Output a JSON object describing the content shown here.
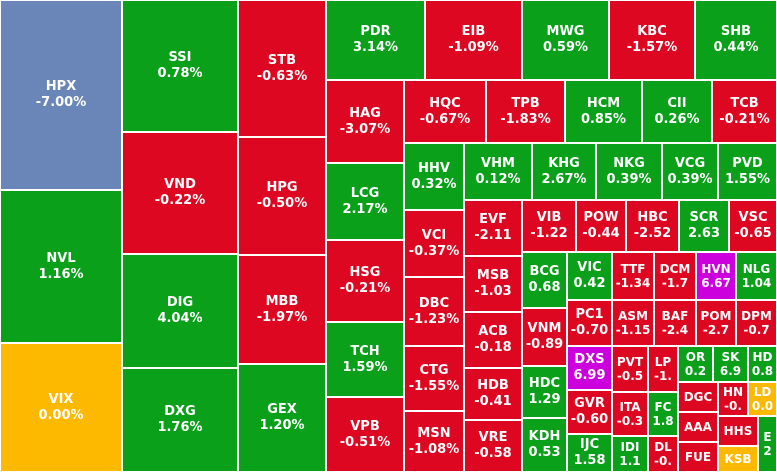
{
  "colors": {
    "up": "#0AA01A",
    "down": "#DD0722",
    "ref": "#FDB800",
    "floor": "#6A86B8",
    "ceiling": "#CC00DD"
  },
  "tiles": [
    {
      "ticker": "HPX",
      "change": "-7.00%",
      "status": "floor"
    },
    {
      "ticker": "NVL",
      "change": "1.16%",
      "status": "up"
    },
    {
      "ticker": "VIX",
      "change": "0.00%",
      "status": "ref"
    },
    {
      "ticker": "SSI",
      "change": "0.78%",
      "status": "up"
    },
    {
      "ticker": "VND",
      "change": "-0.22%",
      "status": "down"
    },
    {
      "ticker": "DIG",
      "change": "4.04%",
      "status": "up"
    },
    {
      "ticker": "DXG",
      "change": "1.76%",
      "status": "up"
    },
    {
      "ticker": "STB",
      "change": "-0.63%",
      "status": "down"
    },
    {
      "ticker": "HPG",
      "change": "-0.50%",
      "status": "down"
    },
    {
      "ticker": "MBB",
      "change": "-1.97%",
      "status": "down"
    },
    {
      "ticker": "GEX",
      "change": "1.20%",
      "status": "up"
    },
    {
      "ticker": "PDR",
      "change": "3.14%",
      "status": "up"
    },
    {
      "ticker": "EIB",
      "change": "-1.09%",
      "status": "down"
    },
    {
      "ticker": "MWG",
      "change": "0.59%",
      "status": "up"
    },
    {
      "ticker": "KBC",
      "change": "-1.57%",
      "status": "down"
    },
    {
      "ticker": "SHB",
      "change": "0.44%",
      "status": "up"
    },
    {
      "ticker": "HAG",
      "change": "-3.07%",
      "status": "down"
    },
    {
      "ticker": "LCG",
      "change": "2.17%",
      "status": "up"
    },
    {
      "ticker": "HSG",
      "change": "-0.21%",
      "status": "down"
    },
    {
      "ticker": "TCH",
      "change": "1.59%",
      "status": "up"
    },
    {
      "ticker": "VPB",
      "change": "-0.51%",
      "status": "down"
    },
    {
      "ticker": "HQC",
      "change": "-0.67%",
      "status": "down"
    },
    {
      "ticker": "TPB",
      "change": "-1.83%",
      "status": "down"
    },
    {
      "ticker": "HCM",
      "change": "0.85%",
      "status": "up"
    },
    {
      "ticker": "CII",
      "change": "0.26%",
      "status": "up"
    },
    {
      "ticker": "TCB",
      "change": "-0.21%",
      "status": "down"
    },
    {
      "ticker": "HHV",
      "change": "0.32%",
      "status": "up"
    },
    {
      "ticker": "VHM",
      "change": "0.12%",
      "status": "up"
    },
    {
      "ticker": "KHG",
      "change": "2.67%",
      "status": "up"
    },
    {
      "ticker": "NKG",
      "change": "0.39%",
      "status": "up"
    },
    {
      "ticker": "VCG",
      "change": "0.39%",
      "status": "up"
    },
    {
      "ticker": "PVD",
      "change": "1.55%",
      "status": "up"
    },
    {
      "ticker": "VCI",
      "change": "-0.37%",
      "status": "down"
    },
    {
      "ticker": "DBC",
      "change": "-1.23%",
      "status": "down"
    },
    {
      "ticker": "CTG",
      "change": "-1.55%",
      "status": "down"
    },
    {
      "ticker": "MSN",
      "change": "-1.08%",
      "status": "down"
    },
    {
      "ticker": "EVF",
      "change": "-2.11",
      "status": "down"
    },
    {
      "ticker": "MSB",
      "change": "-1.03",
      "status": "down"
    },
    {
      "ticker": "ACB",
      "change": "-0.18",
      "status": "down"
    },
    {
      "ticker": "HDB",
      "change": "-0.41",
      "status": "down"
    },
    {
      "ticker": "VRE",
      "change": "-0.58",
      "status": "down"
    },
    {
      "ticker": "VIB",
      "change": "-1.22",
      "status": "down"
    },
    {
      "ticker": "POW",
      "change": "-0.44",
      "status": "down"
    },
    {
      "ticker": "HBC",
      "change": "-2.52",
      "status": "down"
    },
    {
      "ticker": "SCR",
      "change": "2.63",
      "status": "up"
    },
    {
      "ticker": "VSC",
      "change": "-0.65",
      "status": "down"
    },
    {
      "ticker": "BCG",
      "change": "0.68",
      "status": "up"
    },
    {
      "ticker": "VIC",
      "change": "0.42",
      "status": "up"
    },
    {
      "ticker": "TTF",
      "change": "-1.34",
      "status": "down"
    },
    {
      "ticker": "DCM",
      "change": "-1.7",
      "status": "down"
    },
    {
      "ticker": "HVN",
      "change": "6.67",
      "status": "ceiling"
    },
    {
      "ticker": "NLG",
      "change": "1.04",
      "status": "up"
    },
    {
      "ticker": "VNM",
      "change": "-0.89",
      "status": "down"
    },
    {
      "ticker": "PC1",
      "change": "-0.70",
      "status": "down"
    },
    {
      "ticker": "ASM",
      "change": "-1.15",
      "status": "down"
    },
    {
      "ticker": "BAF",
      "change": "-2.4",
      "status": "down"
    },
    {
      "ticker": "POM",
      "change": "-2.7",
      "status": "down"
    },
    {
      "ticker": "DPM",
      "change": "-0.7",
      "status": "down"
    },
    {
      "ticker": "DXS",
      "change": "6.99",
      "status": "ceiling"
    },
    {
      "ticker": "PVT",
      "change": "-0.5",
      "status": "down"
    },
    {
      "ticker": "LP",
      "change": "-1.",
      "status": "down"
    },
    {
      "ticker": "OR",
      "change": "0.2",
      "status": "up"
    },
    {
      "ticker": "SK",
      "change": "6.9",
      "status": "up"
    },
    {
      "ticker": "HD",
      "change": "0.8",
      "status": "up"
    },
    {
      "ticker": "HDC",
      "change": "1.29",
      "status": "up"
    },
    {
      "ticker": "GVR",
      "change": "-0.60",
      "status": "down"
    },
    {
      "ticker": "ITA",
      "change": "-0.3",
      "status": "down"
    },
    {
      "ticker": "FC",
      "change": "1.8",
      "status": "up"
    },
    {
      "ticker": "DGC",
      "change": "",
      "status": "down"
    },
    {
      "ticker": "HN",
      "change": "-0.",
      "status": "down"
    },
    {
      "ticker": "LD",
      "change": "0.0",
      "status": "ref"
    },
    {
      "ticker": "KDH",
      "change": "0.53",
      "status": "up"
    },
    {
      "ticker": "IJC",
      "change": "1.58",
      "status": "up"
    },
    {
      "ticker": "IDI",
      "change": "1.1",
      "status": "up"
    },
    {
      "ticker": "DL",
      "change": "-0.",
      "status": "down"
    },
    {
      "ticker": "AAA",
      "change": "",
      "status": "down"
    },
    {
      "ticker": "HHS",
      "change": "",
      "status": "down"
    },
    {
      "ticker": "FUE",
      "change": "",
      "status": "down"
    },
    {
      "ticker": "KSB",
      "change": "",
      "status": "ref"
    },
    {
      "ticker": "E",
      "change": "2",
      "status": "up"
    }
  ]
}
